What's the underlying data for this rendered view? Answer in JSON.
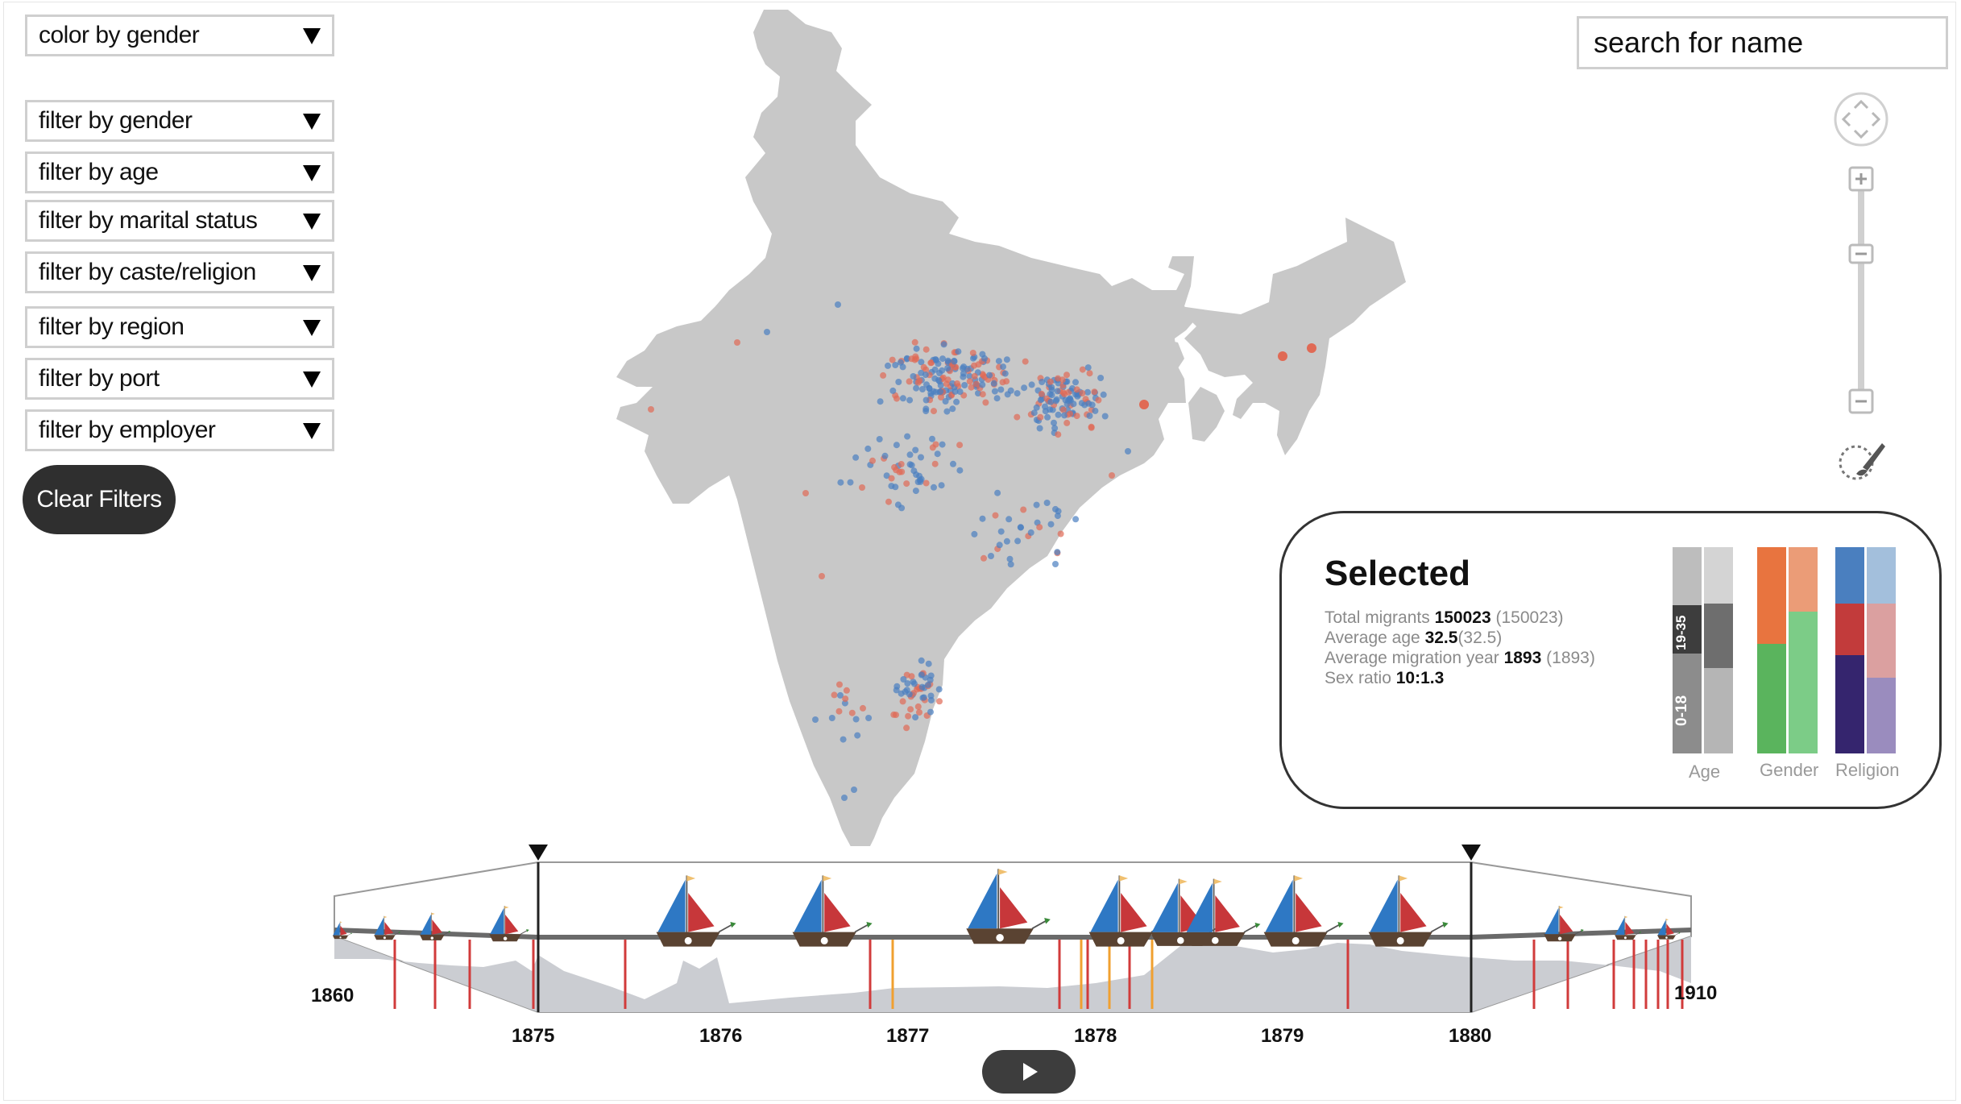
{
  "controls": {
    "color_by": "color by gender",
    "filters": [
      "filter by gender",
      "filter by age",
      "filter by marital status",
      "filter by caste/religion",
      "filter by region",
      "filter by port",
      "filter by employer"
    ],
    "clear_label": "Clear Filters"
  },
  "search": {
    "placeholder": "search for name"
  },
  "selected": {
    "title": "Selected",
    "total_label": "Total migrants",
    "total_value": "150023",
    "total_paren": "(150023)",
    "age_label": "Average age",
    "age_value": "32.5",
    "age_paren": "(32.5)",
    "year_label": "Average migration year",
    "year_value": "1893",
    "year_paren": "(1893)",
    "ratio_label": "Sex ratio",
    "ratio_value": "10:1.3",
    "bars": {
      "age_label": "Age",
      "gender_label": "Gender",
      "religion_label": "Religion",
      "age_band_1": "19-35",
      "age_band_2": "0-18"
    }
  },
  "colors": {
    "map_land": "#c8c8c8",
    "male_dot": "#4a7fc0",
    "female_dot": "#e06a55",
    "ship_blue": "#2e78c4",
    "ship_red": "#c7373a",
    "timeline_mark_red": "#d13b3b",
    "timeline_mark_orange": "#f0a030"
  },
  "timeline": {
    "start_label": "1860",
    "end_label": "1910",
    "zoom_years": [
      "1875",
      "1876",
      "1877",
      "1878",
      "1879",
      "1880"
    ]
  }
}
